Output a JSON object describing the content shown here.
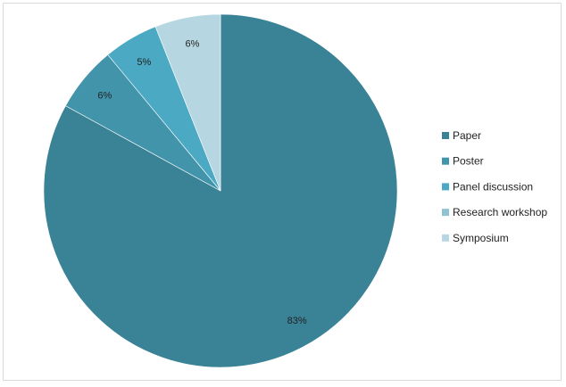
{
  "chart_data": {
    "type": "pie",
    "title": "",
    "start_angle_deg": 0,
    "direction": "clockwise",
    "legend_position": "right",
    "slices": [
      {
        "name": "Paper",
        "value": 83,
        "label": "83%",
        "color": "#3a8296"
      },
      {
        "name": "Poster",
        "value": 6,
        "label": "6%",
        "color": "#4294aa"
      },
      {
        "name": "Panel discussion",
        "value": 5,
        "label": "5%",
        "color": "#4ba9c3"
      },
      {
        "name": "Research workshop",
        "value": 0,
        "label": "",
        "color": "#8fc3d2"
      },
      {
        "name": "Symposium",
        "value": 6,
        "label": "6%",
        "color": "#b6d7e1"
      }
    ]
  }
}
